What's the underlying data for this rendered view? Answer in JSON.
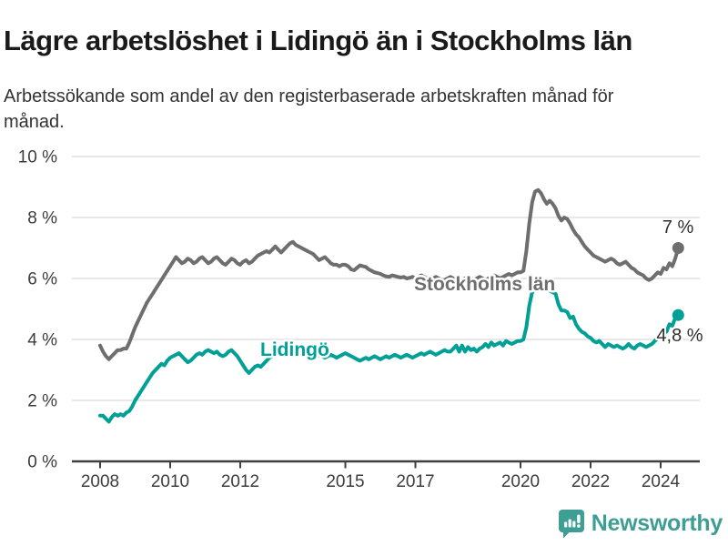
{
  "header": {
    "title": "Lägre arbetslöshet i Lidingö än i Stockholms län",
    "subtitle": "Arbetssökande som andel av den registerbaserade arbetskraften månad för månad."
  },
  "chart_data": {
    "type": "line",
    "title": "Lägre arbetslöshet i Lidingö än i Stockholms län",
    "subtitle": "Arbetssökande som andel av den registerbaserade arbetskraften månad för månad.",
    "unit": "%",
    "ylim": [
      0,
      10
    ],
    "grid": true,
    "x_start_year": 2008,
    "points_per_year": 12,
    "y_ticks": [
      {
        "value": 10,
        "label": "10 %"
      },
      {
        "value": 8,
        "label": "8 %"
      },
      {
        "value": 6,
        "label": "6 %"
      },
      {
        "value": 4,
        "label": "4 %"
      },
      {
        "value": 2,
        "label": "2 %"
      },
      {
        "value": 0,
        "label": "0 %"
      }
    ],
    "x_ticks": [
      {
        "value": 2008,
        "label": "2008"
      },
      {
        "value": 2010,
        "label": "2010"
      },
      {
        "value": 2012,
        "label": "2012"
      },
      {
        "value": 2015,
        "label": "2015"
      },
      {
        "value": 2017,
        "label": "2017"
      },
      {
        "value": 2020,
        "label": "2020"
      },
      {
        "value": 2022,
        "label": "2022"
      },
      {
        "value": 2024,
        "label": "2024"
      }
    ],
    "series": [
      {
        "name": "Stockholms län",
        "color": "#6e6e6e",
        "end_label": "7 %",
        "end_value": 7.0,
        "values": [
          3.8,
          3.6,
          3.45,
          3.35,
          3.45,
          3.55,
          3.65,
          3.65,
          3.7,
          3.7,
          3.9,
          4.15,
          4.4,
          4.6,
          4.8,
          5.0,
          5.2,
          5.35,
          5.5,
          5.65,
          5.8,
          5.95,
          6.1,
          6.25,
          6.4,
          6.55,
          6.7,
          6.6,
          6.5,
          6.55,
          6.65,
          6.6,
          6.5,
          6.55,
          6.65,
          6.7,
          6.6,
          6.5,
          6.55,
          6.65,
          6.7,
          6.6,
          6.5,
          6.45,
          6.55,
          6.65,
          6.6,
          6.5,
          6.45,
          6.55,
          6.6,
          6.5,
          6.55,
          6.65,
          6.75,
          6.8,
          6.85,
          6.9,
          6.85,
          6.95,
          7.05,
          6.95,
          6.85,
          6.95,
          7.05,
          7.15,
          7.2,
          7.1,
          7.05,
          7.0,
          6.95,
          6.9,
          6.85,
          6.8,
          6.7,
          6.6,
          6.65,
          6.7,
          6.6,
          6.5,
          6.45,
          6.45,
          6.4,
          6.45,
          6.45,
          6.4,
          6.3,
          6.27,
          6.35,
          6.43,
          6.4,
          6.38,
          6.3,
          6.25,
          6.2,
          6.18,
          6.15,
          6.1,
          6.07,
          6.05,
          6.1,
          6.08,
          6.05,
          6.03,
          6.05,
          6.0,
          6.02,
          6.05,
          6.0,
          6.05,
          6.1,
          6.05,
          6.0,
          5.95,
          6.0,
          6.05,
          6.0,
          5.95,
          5.95,
          6.0,
          6.05,
          6.0,
          5.95,
          5.9,
          5.95,
          6.0,
          6.05,
          6.0,
          5.95,
          6.0,
          6.05,
          6.0,
          5.95,
          6.0,
          6.05,
          6.1,
          6.05,
          6.0,
          6.05,
          6.1,
          6.15,
          6.1,
          6.15,
          6.2,
          6.2,
          6.25,
          6.9,
          7.8,
          8.5,
          8.85,
          8.9,
          8.8,
          8.6,
          8.45,
          8.55,
          8.45,
          8.3,
          8.05,
          7.9,
          8.0,
          7.95,
          7.8,
          7.6,
          7.45,
          7.35,
          7.2,
          7.05,
          6.95,
          6.85,
          6.75,
          6.7,
          6.65,
          6.6,
          6.55,
          6.6,
          6.65,
          6.6,
          6.5,
          6.45,
          6.5,
          6.55,
          6.45,
          6.35,
          6.3,
          6.2,
          6.15,
          6.1,
          6.0,
          5.95,
          6.0,
          6.1,
          6.2,
          6.15,
          6.35,
          6.3,
          6.5,
          6.4,
          6.65,
          7.0
        ]
      },
      {
        "name": "Lidingö",
        "color": "#00a096",
        "end_label": "4,8 %",
        "end_value": 4.8,
        "values": [
          1.5,
          1.5,
          1.4,
          1.3,
          1.45,
          1.55,
          1.5,
          1.55,
          1.5,
          1.6,
          1.65,
          1.8,
          2.0,
          2.15,
          2.3,
          2.45,
          2.6,
          2.75,
          2.9,
          3.0,
          3.1,
          3.2,
          3.15,
          3.3,
          3.4,
          3.45,
          3.5,
          3.55,
          3.45,
          3.35,
          3.25,
          3.3,
          3.4,
          3.5,
          3.55,
          3.5,
          3.6,
          3.65,
          3.6,
          3.55,
          3.6,
          3.5,
          3.45,
          3.5,
          3.6,
          3.65,
          3.55,
          3.45,
          3.3,
          3.15,
          3.0,
          2.9,
          3.0,
          3.1,
          3.15,
          3.1,
          3.2,
          3.3,
          3.4,
          3.45,
          3.5,
          3.55,
          3.6,
          3.55,
          3.65,
          3.6,
          3.65,
          3.6,
          3.65,
          3.6,
          3.55,
          3.6,
          3.55,
          3.5,
          3.45,
          3.5,
          3.45,
          3.4,
          3.45,
          3.5,
          3.45,
          3.4,
          3.45,
          3.5,
          3.55,
          3.5,
          3.45,
          3.4,
          3.35,
          3.3,
          3.35,
          3.4,
          3.35,
          3.4,
          3.45,
          3.4,
          3.35,
          3.4,
          3.45,
          3.4,
          3.45,
          3.5,
          3.45,
          3.4,
          3.45,
          3.5,
          3.45,
          3.4,
          3.45,
          3.5,
          3.55,
          3.5,
          3.55,
          3.6,
          3.55,
          3.5,
          3.55,
          3.6,
          3.65,
          3.6,
          3.6,
          3.7,
          3.8,
          3.6,
          3.8,
          3.6,
          3.75,
          3.65,
          3.7,
          3.6,
          3.7,
          3.75,
          3.85,
          3.75,
          3.9,
          3.8,
          3.85,
          3.9,
          3.8,
          3.95,
          3.9,
          3.85,
          3.9,
          3.95,
          3.95,
          4.0,
          4.4,
          5.1,
          5.55,
          5.7,
          5.75,
          5.7,
          5.65,
          5.7,
          5.6,
          5.55,
          5.5,
          5.15,
          4.95,
          4.95,
          4.9,
          4.7,
          4.75,
          4.5,
          4.35,
          4.25,
          4.2,
          4.1,
          4.05,
          3.95,
          3.9,
          3.95,
          3.85,
          3.75,
          3.85,
          3.8,
          3.75,
          3.8,
          3.75,
          3.7,
          3.75,
          3.85,
          3.75,
          3.7,
          3.8,
          3.85,
          3.8,
          3.75,
          3.8,
          3.85,
          3.95,
          4.05,
          4.15,
          4.3,
          4.25,
          4.5,
          4.45,
          4.7,
          4.8
        ]
      }
    ],
    "legend_position": "inline-labels"
  },
  "branding": {
    "logo_text": "Newsworthy",
    "logo_color": "#3f9e94"
  },
  "colors": {
    "title_text": "#1a1a1a",
    "subtitle_text": "#333333",
    "axis_text": "#3d3d3d",
    "axis_line": "#3f3f3f",
    "gridline": "#d9d9d9",
    "stockholm_gray": "#6e6e6e",
    "lidingo_teal": "#00a096",
    "logo_teal": "#3f9e94"
  }
}
